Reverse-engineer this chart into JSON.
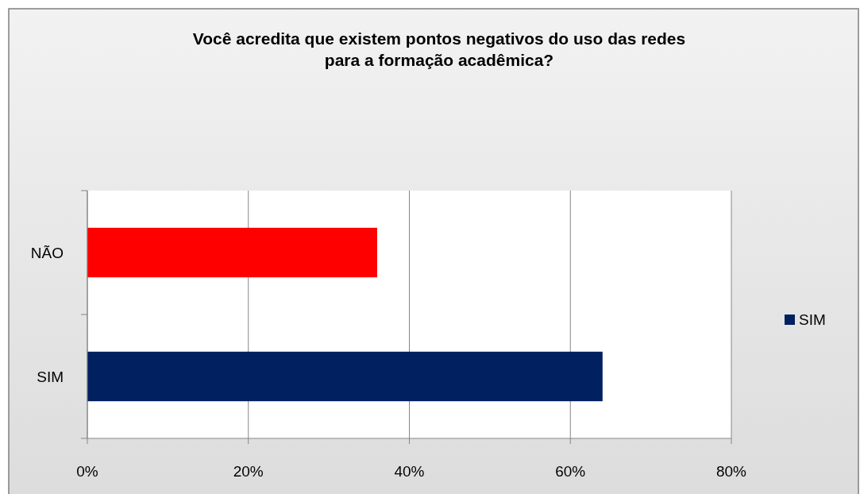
{
  "chart_data": {
    "type": "bar",
    "orientation": "horizontal",
    "title": "Você acredita que existem pontos negativos do uso das redes para a formação acadêmica?",
    "categories": [
      "NÃO",
      "SIM"
    ],
    "series": [
      {
        "name": "SIM",
        "color": "#002060",
        "colors": [
          "#ff0000",
          "#002060"
        ],
        "values": [
          36,
          64
        ]
      }
    ],
    "xlim": [
      0,
      80
    ],
    "xticks": [
      {
        "value": 0,
        "label": "0%"
      },
      {
        "value": 20,
        "label": "20%"
      },
      {
        "value": 40,
        "label": "40%"
      },
      {
        "value": 60,
        "label": "60%"
      },
      {
        "value": 80,
        "label": "80%"
      }
    ],
    "grid": "x",
    "legend": "right"
  }
}
